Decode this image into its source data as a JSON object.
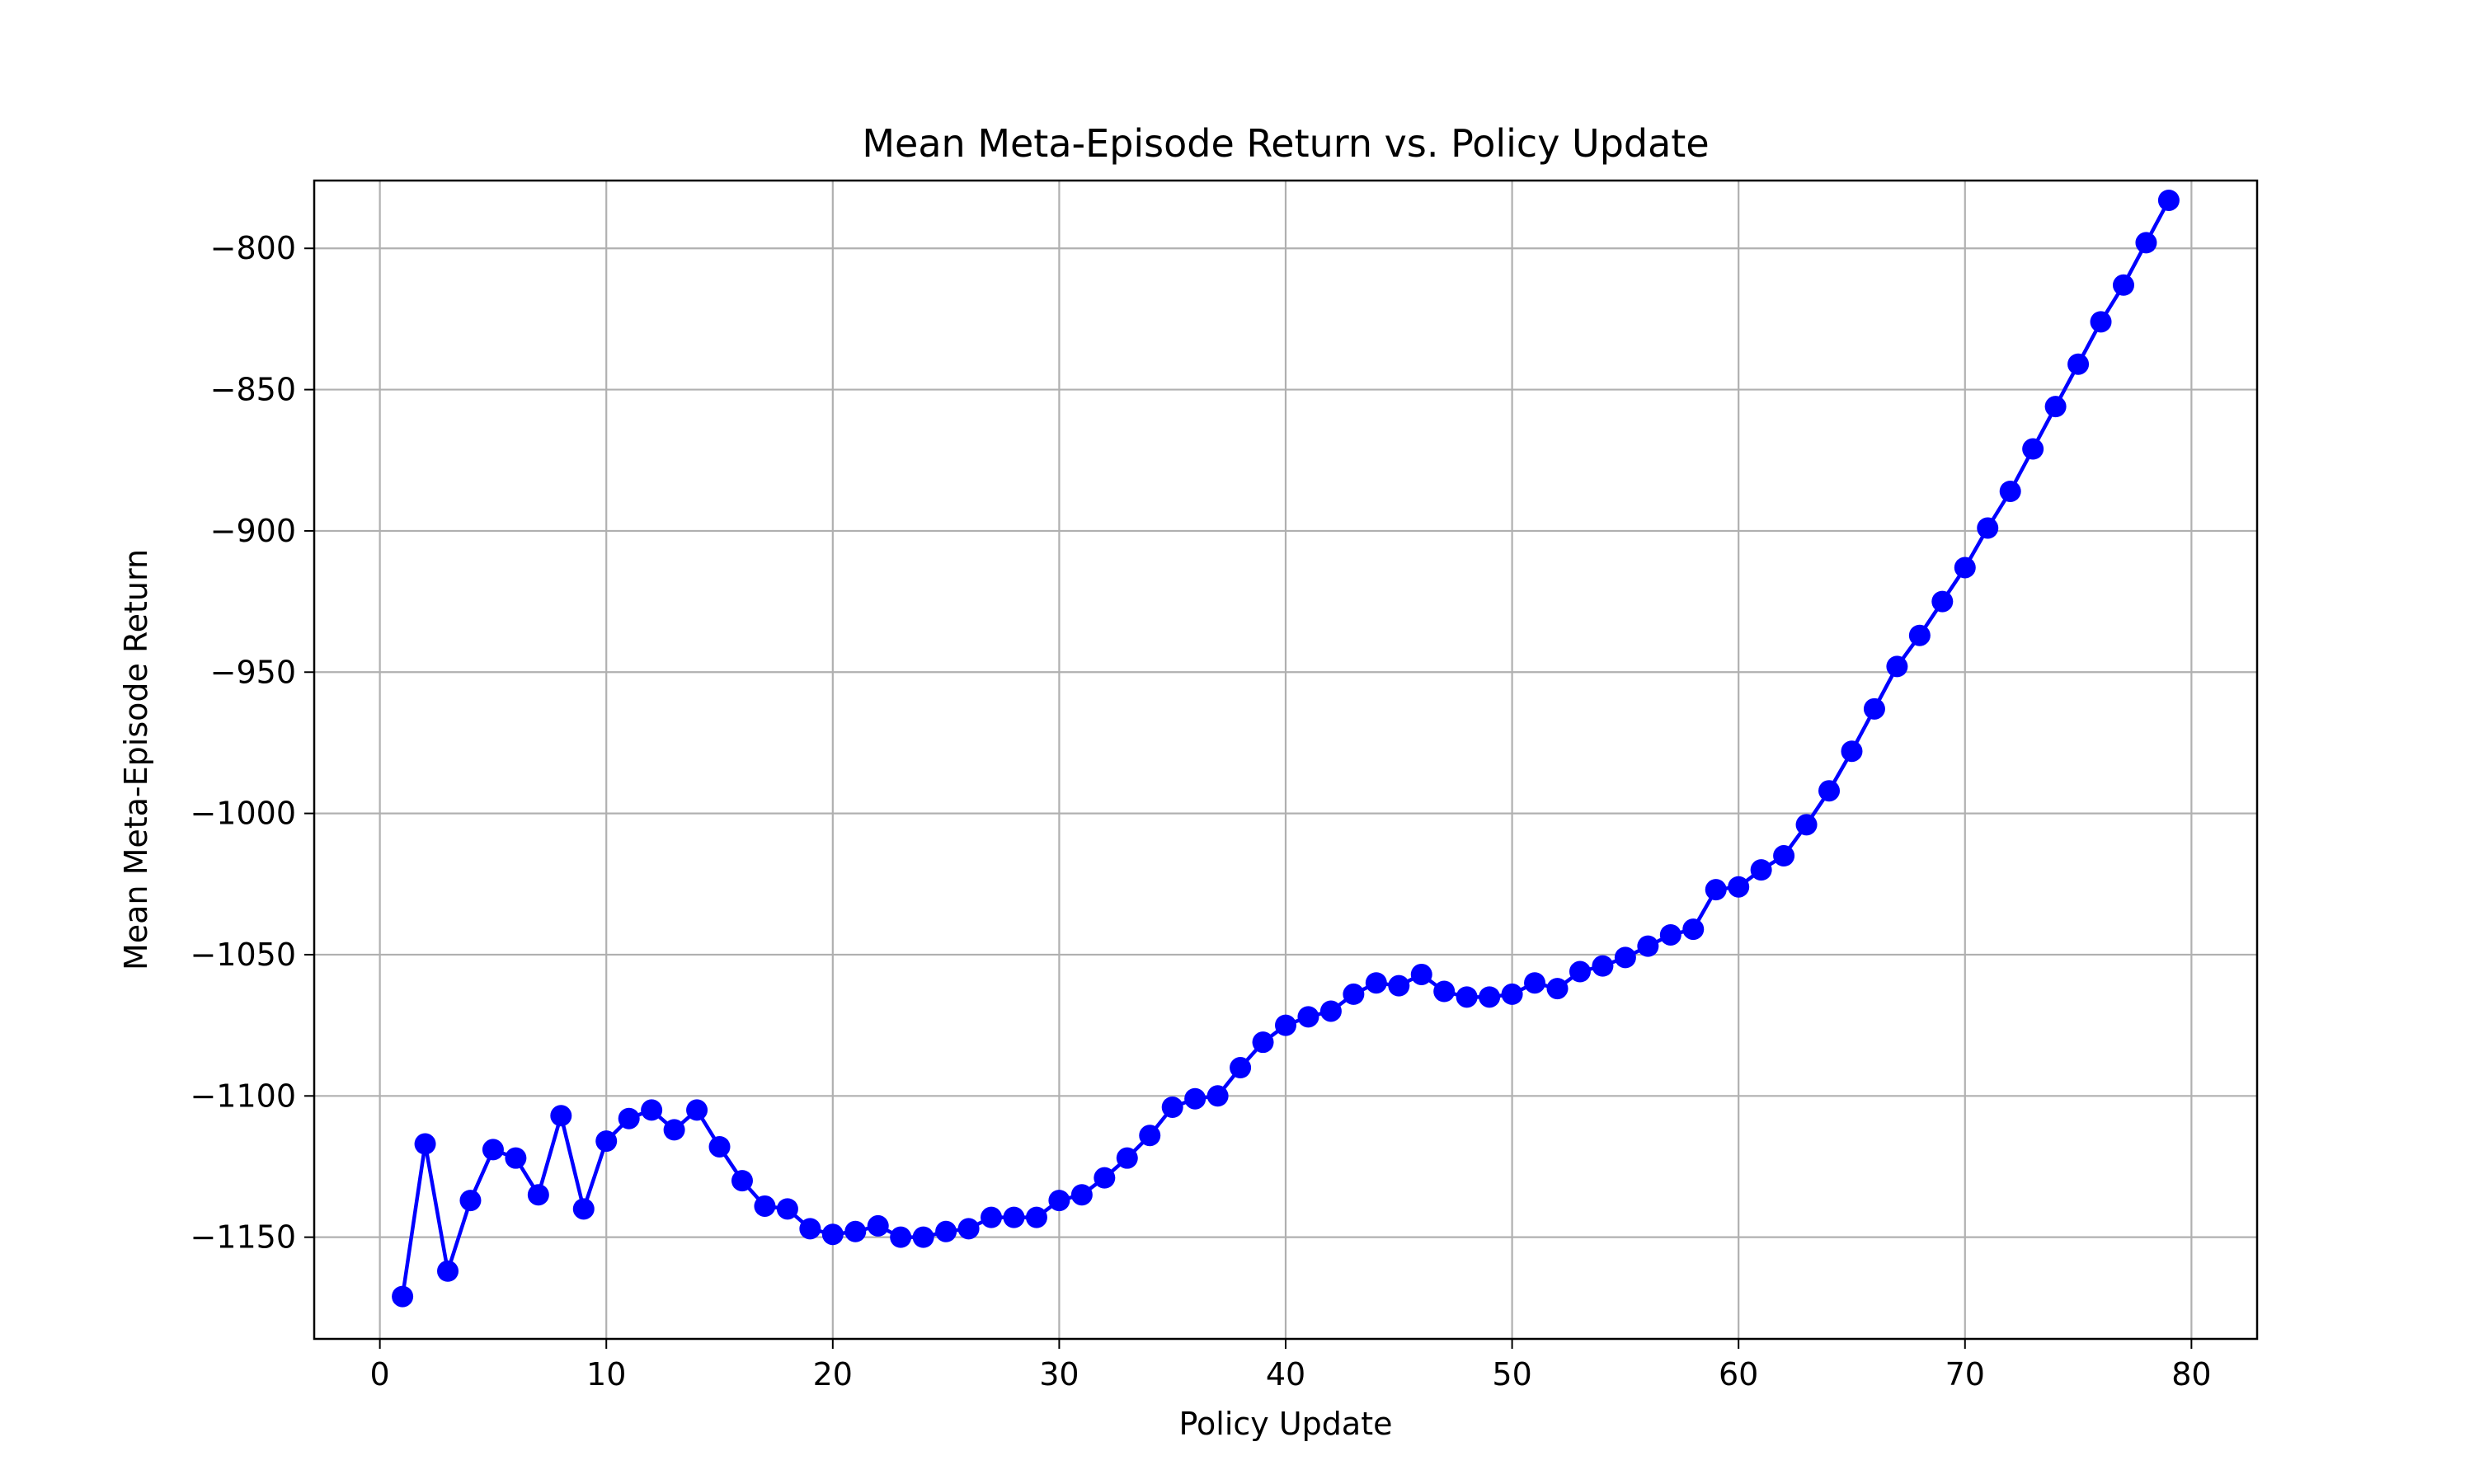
{
  "chart_data": {
    "type": "line",
    "title": "Mean Meta-Episode Return vs. Policy Update",
    "xlabel": "Policy Update",
    "ylabel": "Mean Meta-Episode Return",
    "xlim": [
      -2.9,
      82.9
    ],
    "ylim": [
      -1186,
      -776
    ],
    "x_ticks": [
      0,
      10,
      20,
      30,
      40,
      50,
      60,
      70,
      80
    ],
    "y_ticks": [
      -800,
      -850,
      -900,
      -950,
      -1000,
      -1050,
      -1100,
      -1150
    ],
    "x_tick_labels": [
      "0",
      "10",
      "20",
      "30",
      "40",
      "50",
      "60",
      "70",
      "80"
    ],
    "y_tick_labels": [
      "−800",
      "−850",
      "−900",
      "−950",
      "−1000",
      "−1050",
      "−1100",
      "−1150"
    ],
    "grid": true,
    "series": [
      {
        "color": "#0000ff",
        "marker": "circle",
        "x": [
          1,
          2,
          3,
          4,
          5,
          6,
          7,
          8,
          9,
          10,
          11,
          12,
          13,
          14,
          15,
          16,
          17,
          18,
          19,
          20,
          21,
          22,
          23,
          24,
          25,
          26,
          27,
          28,
          29,
          30,
          31,
          32,
          33,
          34,
          35,
          36,
          37,
          38,
          39,
          40,
          41,
          42,
          43,
          44,
          45,
          46,
          47,
          48,
          49,
          50,
          51,
          52,
          53,
          54,
          55,
          56,
          57,
          58,
          59,
          60,
          61,
          62,
          63,
          64,
          65,
          66,
          67,
          68,
          69,
          70,
          71,
          72,
          73,
          74,
          75,
          76,
          77,
          78,
          79
        ],
        "y": [
          -1171,
          -1117,
          -1162,
          -1137,
          -1119,
          -1122,
          -1135,
          -1107,
          -1140,
          -1116,
          -1108,
          -1105,
          -1112,
          -1105,
          -1118,
          -1130,
          -1139,
          -1140,
          -1147,
          -1149,
          -1148,
          -1146,
          -1150,
          -1150,
          -1148,
          -1147,
          -1143,
          -1143,
          -1143,
          -1137,
          -1135,
          -1129,
          -1122,
          -1114,
          -1104,
          -1101,
          -1100,
          -1090,
          -1081,
          -1075,
          -1072,
          -1070,
          -1064,
          -1060,
          -1061,
          -1057,
          -1063,
          -1065,
          -1065,
          -1064,
          -1060,
          -1062,
          -1056,
          -1054,
          -1051,
          -1047,
          -1043,
          -1041,
          -1027,
          -1026,
          -1020,
          -1015,
          -1004,
          -992,
          -978,
          -963,
          -948,
          -937,
          -925,
          -913,
          -899,
          -886,
          -871,
          -856,
          -841,
          -826,
          -813,
          -798,
          -783
        ]
      }
    ]
  }
}
